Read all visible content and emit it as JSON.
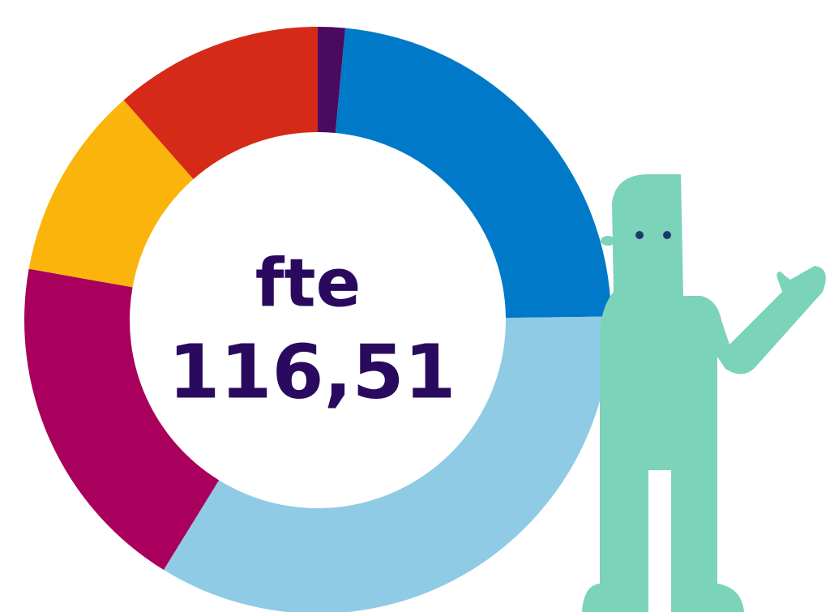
{
  "chart_data": {
    "type": "donut",
    "title": "fte",
    "subtitle": "116,51",
    "values": [
      1.5,
      23.3,
      34,
      19,
      10.7,
      11.5
    ],
    "colors": [
      "#4a0a5e",
      "#007ac8",
      "#8fcbe4",
      "#a8005c",
      "#fbb40b",
      "#d52a17"
    ]
  }
}
